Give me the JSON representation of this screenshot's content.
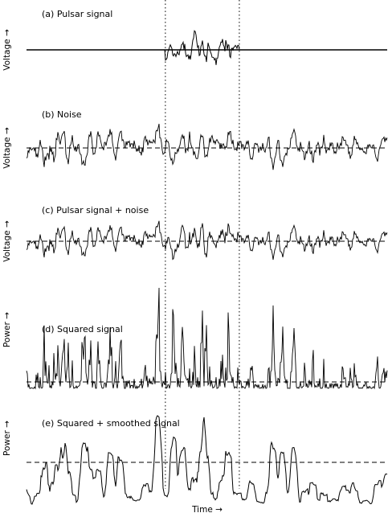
{
  "chart_data": {
    "type": "line",
    "xlabel": "Time →",
    "pulse_window": {
      "start": 0.385,
      "end": 0.59
    },
    "panels": [
      {
        "key": "a",
        "title": "(a) Pulsar signal",
        "ylabel": "Voltage →",
        "kind": "pulse",
        "seed": 11
      },
      {
        "key": "b",
        "title": "(b) Noise",
        "ylabel": "Voltage →",
        "kind": "noise",
        "seed": 23
      },
      {
        "key": "c",
        "title": "(c) Pulsar signal + noise",
        "ylabel": "Voltage →",
        "kind": "sum",
        "seed": 23
      },
      {
        "key": "d",
        "title": "(d) Squared signal",
        "ylabel": "Power →",
        "kind": "squared",
        "seed": 23
      },
      {
        "key": "e",
        "title": "(e) Squared + smoothed signal",
        "ylabel": "Power →",
        "kind": "smoothed",
        "seed": 23
      }
    ]
  }
}
